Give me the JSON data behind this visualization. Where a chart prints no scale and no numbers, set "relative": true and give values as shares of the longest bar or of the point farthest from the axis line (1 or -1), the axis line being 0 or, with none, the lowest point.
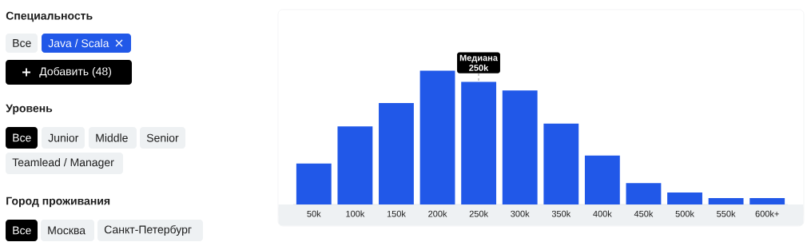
{
  "chart_data": [
    {
      "type": "other",
      "annotations": [
        "Специальность",
        "Все",
        "Java / Scala",
        "Добавить (48)",
        "Уровень",
        "Все",
        "Junior",
        "Middle",
        "Senior",
        "Teamlead / Manager",
        "Город проживания",
        "Все",
        "Москва",
        "Санкт-Петербург"
      ]
    },
    {
      "type": "bar",
      "relative": true,
      "categories": [
        "50k",
        "100k",
        "150k",
        "200k",
        "250k",
        "300k",
        "350k",
        "400k",
        "450k",
        "500k",
        "550k",
        "600k+"
      ],
      "values": [
        0.306,
        0.583,
        0.758,
        1,
        0.916,
        0.852,
        0.605,
        0.365,
        0.16,
        0.089,
        0.047,
        0.047
      ],
      "color": "#2158e8",
      "annotations": [
        "Медиана",
        "250k"
      ]
    }
  ]
}
